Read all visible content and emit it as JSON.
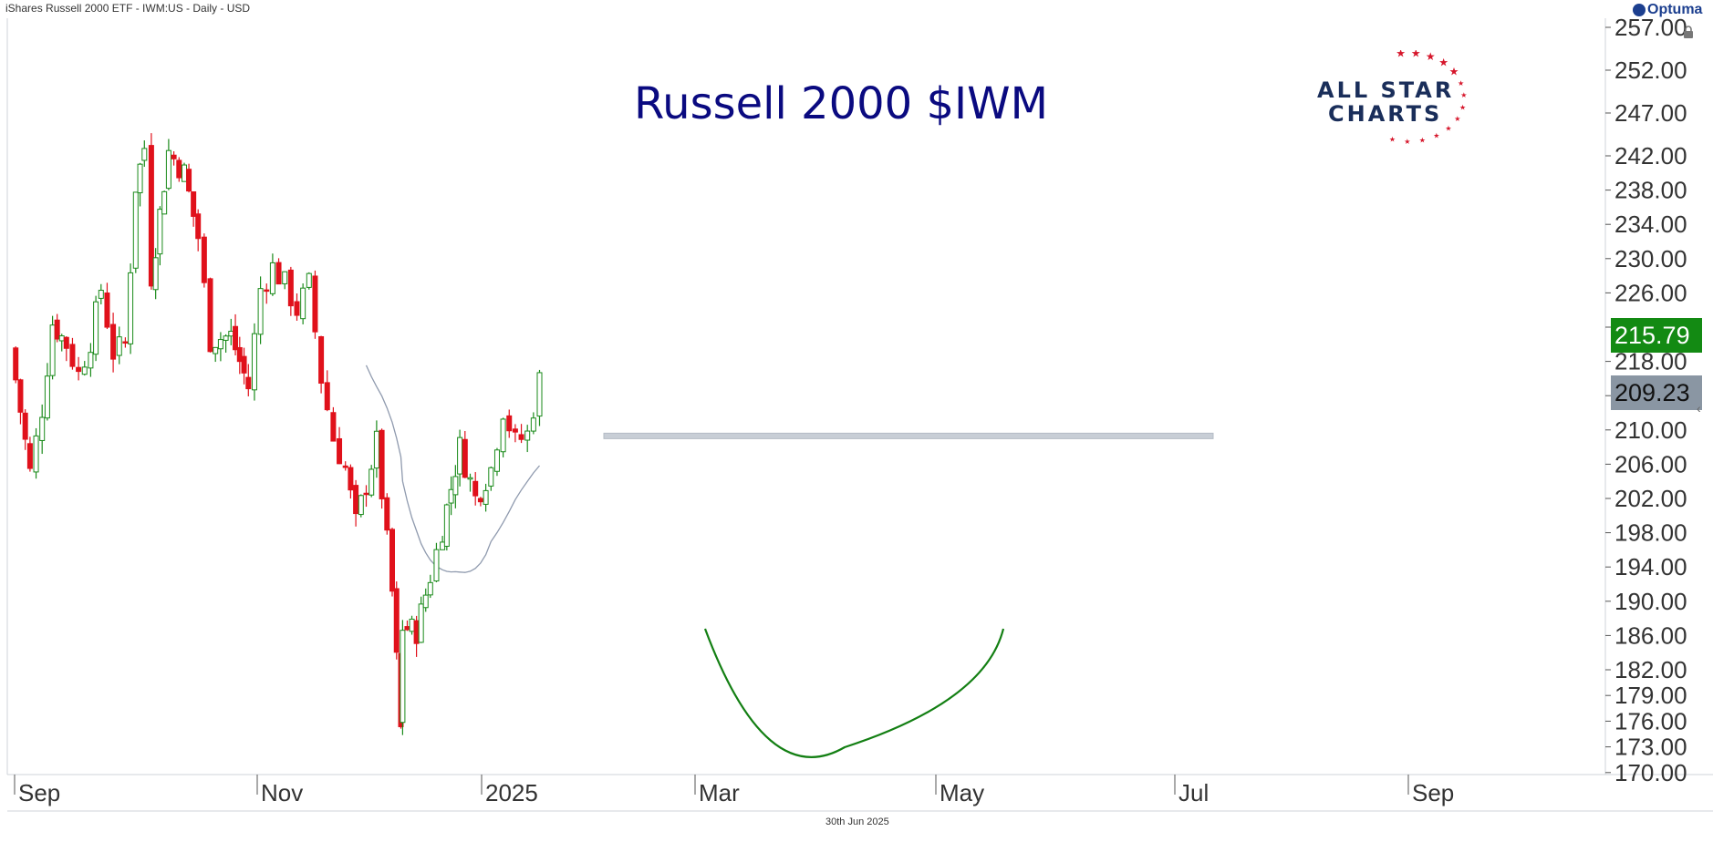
{
  "header": {
    "instrument": "iShares Russell 2000 ETF - IWM:US - Daily - USD"
  },
  "brand": {
    "name": "Optuma"
  },
  "logo": {
    "line1": "ALL STAR",
    "line2": "CHARTS"
  },
  "footer": {
    "date": "30th Jun 2025"
  },
  "price_tags": {
    "last": "215.79",
    "ma": "209.23"
  },
  "colors": {
    "up": "#1a8a1a",
    "down": "#e0111b",
    "ma": "#8f9aae",
    "title": "#0a0a80",
    "arc": "#137f13",
    "resistance": "#c8ced6",
    "last_tag": "#138a13",
    "ma_tag": "#8a96a3"
  },
  "chart_data": {
    "type": "candlestick",
    "title": "Russell 2000 $IWM",
    "y_axis": {
      "side": "right",
      "ticks": [
        "257.00",
        "252.00",
        "247.00",
        "242.00",
        "238.00",
        "234.00",
        "230.00",
        "226.00",
        "222.00",
        "218.00",
        "214.00",
        "210.00",
        "206.00",
        "202.00",
        "198.00",
        "194.00",
        "190.00",
        "186.00",
        "182.00",
        "179.00",
        "176.00",
        "173.00",
        "170.00"
      ],
      "range": [
        168,
        258
      ]
    },
    "x_axis": {
      "labels": [
        "Sep",
        "Nov",
        "2025",
        "Mar",
        "May",
        "Jul",
        "Sep"
      ]
    },
    "grid": false,
    "resistance_level": 209.3,
    "ma_last": 209.23,
    "last_close": 215.79,
    "annotation": "rounded-bottom arc under the March–May lows",
    "series": [
      {
        "kind": "ohlc_close_approx",
        "points": [
          [
            "2024-08-26",
            219.5
          ],
          [
            "2024-09-06",
            205.0
          ],
          [
            "2024-09-13",
            212.5
          ],
          [
            "2024-09-19",
            222.5
          ],
          [
            "2024-09-27",
            220.0
          ],
          [
            "2024-10-04",
            216.5
          ],
          [
            "2024-10-11",
            220.5
          ],
          [
            "2024-10-17",
            226.5
          ],
          [
            "2024-10-24",
            219.0
          ],
          [
            "2024-10-31",
            220.0
          ],
          [
            "2024-11-06",
            238.5
          ],
          [
            "2024-11-11",
            243.0
          ],
          [
            "2024-11-15",
            228.0
          ],
          [
            "2024-11-25",
            242.5
          ],
          [
            "2024-12-04",
            240.0
          ],
          [
            "2024-12-12",
            232.5
          ],
          [
            "2024-12-19",
            220.5
          ],
          [
            "2024-12-31",
            221.0
          ],
          [
            "2025-01-10",
            215.0
          ],
          [
            "2025-01-17",
            226.5
          ],
          [
            "2025-01-24",
            229.0
          ],
          [
            "2025-01-31",
            227.0
          ],
          [
            "2025-02-07",
            224.0
          ],
          [
            "2025-02-14",
            227.0
          ],
          [
            "2025-02-21",
            216.0
          ],
          [
            "2025-02-28",
            209.0
          ],
          [
            "2025-03-07",
            205.5
          ],
          [
            "2025-03-13",
            199.0
          ],
          [
            "2025-03-25",
            208.5
          ],
          [
            "2025-04-03",
            191.0
          ],
          [
            "2025-04-08",
            175.0
          ],
          [
            "2025-04-09",
            187.0
          ],
          [
            "2025-04-17",
            186.5
          ],
          [
            "2025-04-25",
            193.0
          ],
          [
            "2025-05-02",
            198.5
          ],
          [
            "2025-05-12",
            208.0
          ],
          [
            "2025-05-21",
            202.0
          ],
          [
            "2025-05-30",
            205.5
          ],
          [
            "2025-06-06",
            212.5
          ],
          [
            "2025-06-13",
            208.5
          ],
          [
            "2025-06-20",
            209.5
          ],
          [
            "2025-06-27",
            215.79
          ]
        ]
      }
    ]
  }
}
